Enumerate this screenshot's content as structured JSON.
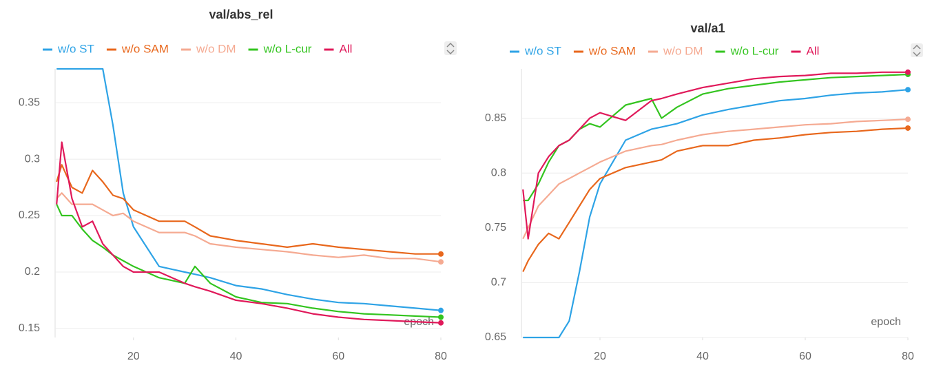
{
  "chart_data": [
    {
      "type": "line",
      "title": "val/abs_rel",
      "xlabel": "epoch",
      "x": [
        5,
        6,
        8,
        10,
        12,
        14,
        16,
        18,
        20,
        25,
        30,
        32,
        35,
        40,
        45,
        50,
        55,
        60,
        65,
        70,
        75,
        80
      ],
      "series": [
        {
          "name": "w/o ST",
          "color": "#2ea3e6",
          "values": [
            0.38,
            0.38,
            0.38,
            0.38,
            0.38,
            0.38,
            0.33,
            0.27,
            0.24,
            0.205,
            0.2,
            0.198,
            0.195,
            0.188,
            0.185,
            0.18,
            0.176,
            0.173,
            0.172,
            0.17,
            0.168,
            0.166
          ]
        },
        {
          "name": "w/o SAM",
          "color": "#e8671c",
          "values": [
            0.28,
            0.295,
            0.275,
            0.27,
            0.29,
            0.28,
            0.268,
            0.265,
            0.255,
            0.245,
            0.245,
            0.24,
            0.232,
            0.228,
            0.225,
            0.222,
            0.225,
            0.222,
            0.22,
            0.218,
            0.216,
            0.216
          ]
        },
        {
          "name": "w/o DM",
          "color": "#f5aa92",
          "values": [
            0.265,
            0.27,
            0.26,
            0.26,
            0.26,
            0.255,
            0.25,
            0.252,
            0.245,
            0.235,
            0.235,
            0.232,
            0.225,
            0.222,
            0.22,
            0.218,
            0.215,
            0.213,
            0.215,
            0.212,
            0.212,
            0.209
          ]
        },
        {
          "name": "w/o L-cur",
          "color": "#33c41f",
          "values": [
            0.26,
            0.25,
            0.25,
            0.238,
            0.228,
            0.222,
            0.215,
            0.21,
            0.205,
            0.195,
            0.19,
            0.205,
            0.19,
            0.178,
            0.173,
            0.172,
            0.168,
            0.165,
            0.163,
            0.162,
            0.161,
            0.16
          ]
        },
        {
          "name": "All",
          "color": "#e0195a",
          "values": [
            0.26,
            0.315,
            0.265,
            0.24,
            0.245,
            0.225,
            0.215,
            0.205,
            0.2,
            0.2,
            0.19,
            0.187,
            0.183,
            0.175,
            0.172,
            0.168,
            0.163,
            0.16,
            0.158,
            0.157,
            0.156,
            0.155
          ]
        }
      ],
      "xlim": [
        4.7,
        80
      ],
      "ylim": [
        0.142,
        0.38
      ],
      "xticks": [
        20,
        40,
        60,
        80
      ],
      "yticks": [
        0.15,
        0.2,
        0.25,
        0.3,
        0.35
      ],
      "grid": true
    },
    {
      "type": "line",
      "title": "val/a1",
      "xlabel": "epoch",
      "x": [
        5,
        6,
        8,
        10,
        12,
        14,
        16,
        18,
        20,
        25,
        30,
        32,
        35,
        40,
        45,
        50,
        55,
        60,
        65,
        70,
        75,
        80
      ],
      "series": [
        {
          "name": "w/o ST",
          "color": "#2ea3e6",
          "values": [
            0.65,
            0.65,
            0.65,
            0.65,
            0.65,
            0.665,
            0.71,
            0.76,
            0.79,
            0.83,
            0.84,
            0.842,
            0.845,
            0.853,
            0.858,
            0.862,
            0.866,
            0.868,
            0.871,
            0.873,
            0.874,
            0.876
          ]
        },
        {
          "name": "w/o SAM",
          "color": "#e8671c",
          "values": [
            0.71,
            0.72,
            0.735,
            0.745,
            0.74,
            0.755,
            0.77,
            0.785,
            0.795,
            0.805,
            0.81,
            0.812,
            0.82,
            0.825,
            0.825,
            0.83,
            0.832,
            0.835,
            0.837,
            0.838,
            0.84,
            0.841
          ]
        },
        {
          "name": "w/o DM",
          "color": "#f5aa92",
          "values": [
            0.74,
            0.75,
            0.77,
            0.78,
            0.79,
            0.795,
            0.8,
            0.805,
            0.81,
            0.82,
            0.825,
            0.826,
            0.83,
            0.835,
            0.838,
            0.84,
            0.842,
            0.844,
            0.845,
            0.847,
            0.848,
            0.849
          ]
        },
        {
          "name": "w/o L-cur",
          "color": "#33c41f",
          "values": [
            0.775,
            0.775,
            0.79,
            0.81,
            0.825,
            0.83,
            0.84,
            0.845,
            0.842,
            0.862,
            0.868,
            0.85,
            0.86,
            0.872,
            0.877,
            0.88,
            0.883,
            0.885,
            0.887,
            0.888,
            0.889,
            0.89
          ]
        },
        {
          "name": "All",
          "color": "#e0195a",
          "values": [
            0.785,
            0.74,
            0.8,
            0.815,
            0.825,
            0.83,
            0.84,
            0.85,
            0.855,
            0.848,
            0.866,
            0.868,
            0.872,
            0.878,
            0.882,
            0.886,
            0.888,
            0.889,
            0.891,
            0.891,
            0.892,
            0.892
          ]
        }
      ],
      "xlim": [
        4.7,
        80
      ],
      "ylim": [
        0.65,
        0.895
      ],
      "xticks": [
        20,
        40,
        60,
        80
      ],
      "yticks": [
        0.65,
        0.7,
        0.75,
        0.8,
        0.85
      ],
      "grid": true
    }
  ]
}
